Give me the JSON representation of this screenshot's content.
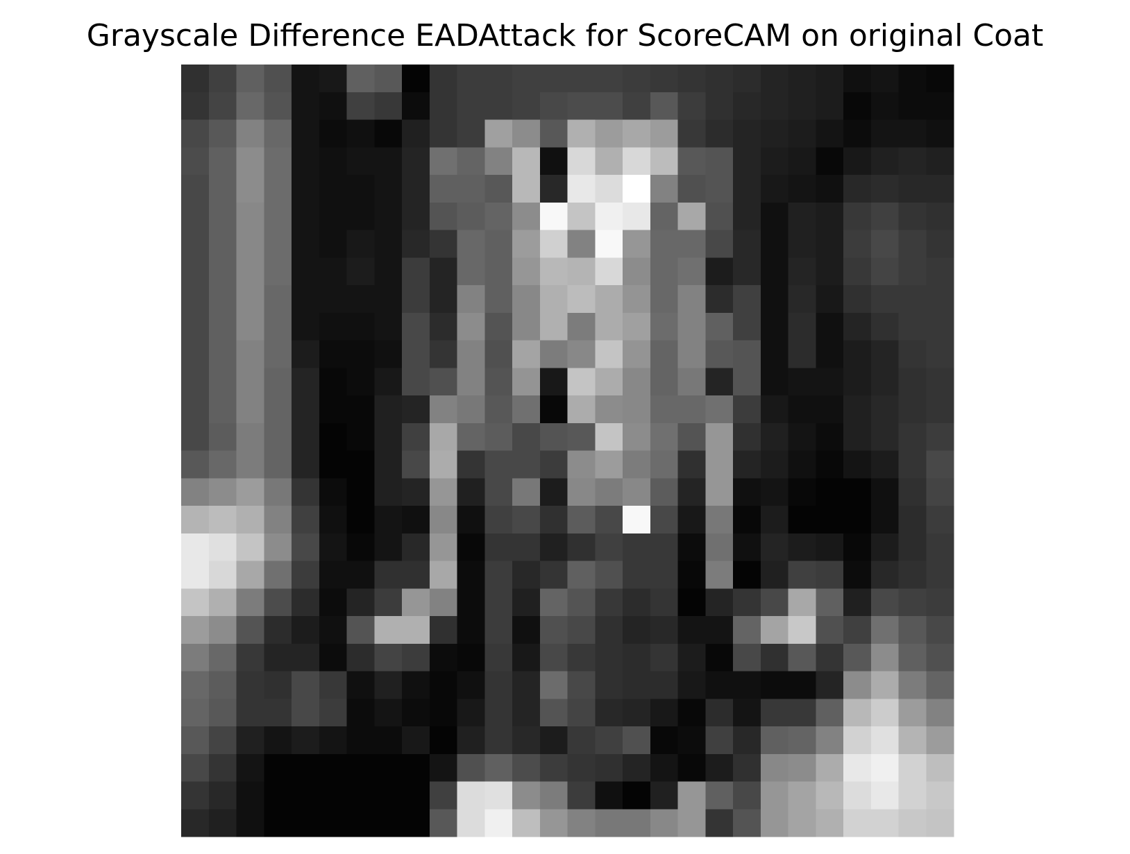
{
  "figure": {
    "title": "Grayscale Difference EADAttack for ScoreCAM on original Coat"
  },
  "chart_data": {
    "type": "heatmap",
    "title": "Grayscale Difference EADAttack for ScoreCAM on original Coat",
    "colormap": "gray",
    "rows": 28,
    "cols": 28,
    "axes_visible": false,
    "value_range": [
      0,
      255
    ],
    "values": [
      [
        48,
        64,
        96,
        80,
        20,
        24,
        96,
        88,
        4,
        52,
        60,
        60,
        64,
        64,
        64,
        64,
        60,
        56,
        52,
        48,
        44,
        36,
        32,
        28,
        16,
        20,
        12,
        8
      ],
      [
        52,
        68,
        104,
        84,
        20,
        16,
        64,
        56,
        12,
        52,
        60,
        60,
        64,
        72,
        76,
        76,
        64,
        88,
        60,
        48,
        40,
        36,
        32,
        28,
        8,
        16,
        12,
        12
      ],
      [
        72,
        88,
        130,
        104,
        20,
        12,
        16,
        8,
        32,
        52,
        60,
        160,
        140,
        88,
        176,
        156,
        168,
        156,
        56,
        44,
        36,
        32,
        28,
        20,
        12,
        20,
        20,
        16
      ],
      [
        76,
        96,
        140,
        108,
        20,
        16,
        20,
        20,
        36,
        112,
        100,
        130,
        184,
        16,
        216,
        176,
        216,
        188,
        88,
        84,
        36,
        28,
        24,
        8,
        24,
        32,
        36,
        32
      ],
      [
        72,
        96,
        140,
        108,
        20,
        16,
        16,
        20,
        36,
        96,
        96,
        88,
        184,
        40,
        232,
        220,
        255,
        130,
        80,
        84,
        36,
        24,
        20,
        16,
        40,
        44,
        40,
        40
      ],
      [
        72,
        96,
        136,
        108,
        20,
        16,
        16,
        20,
        36,
        84,
        92,
        100,
        140,
        248,
        196,
        240,
        232,
        100,
        168,
        80,
        36,
        16,
        32,
        28,
        56,
        64,
        52,
        48
      ],
      [
        72,
        96,
        136,
        108,
        20,
        16,
        24,
        20,
        40,
        52,
        104,
        96,
        156,
        208,
        130,
        248,
        150,
        104,
        104,
        72,
        40,
        16,
        32,
        28,
        60,
        72,
        60,
        52
      ],
      [
        72,
        96,
        136,
        108,
        20,
        20,
        28,
        20,
        60,
        36,
        104,
        96,
        150,
        184,
        180,
        216,
        140,
        104,
        112,
        28,
        40,
        16,
        36,
        28,
        56,
        68,
        60,
        56
      ],
      [
        72,
        96,
        136,
        104,
        20,
        20,
        20,
        20,
        60,
        36,
        130,
        96,
        136,
        176,
        188,
        172,
        148,
        104,
        130,
        44,
        64,
        16,
        40,
        24,
        48,
        56,
        56,
        56
      ],
      [
        72,
        96,
        136,
        104,
        20,
        16,
        16,
        20,
        72,
        44,
        140,
        84,
        136,
        176,
        124,
        172,
        160,
        108,
        130,
        96,
        64,
        16,
        44,
        16,
        36,
        48,
        56,
        56
      ],
      [
        72,
        96,
        130,
        104,
        28,
        12,
        12,
        16,
        72,
        52,
        130,
        80,
        164,
        124,
        136,
        196,
        148,
        100,
        130,
        88,
        84,
        16,
        44,
        16,
        28,
        36,
        52,
        56
      ],
      [
        72,
        96,
        130,
        100,
        36,
        8,
        12,
        24,
        72,
        80,
        130,
        84,
        148,
        24,
        196,
        172,
        136,
        100,
        120,
        36,
        84,
        16,
        20,
        20,
        28,
        36,
        48,
        52
      ],
      [
        72,
        96,
        130,
        100,
        36,
        8,
        8,
        32,
        36,
        130,
        120,
        88,
        112,
        8,
        172,
        140,
        136,
        104,
        104,
        112,
        60,
        24,
        16,
        16,
        32,
        40,
        48,
        52
      ],
      [
        72,
        92,
        124,
        100,
        36,
        4,
        8,
        32,
        64,
        168,
        100,
        92,
        72,
        84,
        88,
        196,
        140,
        112,
        84,
        150,
        48,
        32,
        20,
        12,
        32,
        40,
        52,
        60
      ],
      [
        88,
        104,
        124,
        100,
        36,
        4,
        4,
        32,
        72,
        172,
        52,
        72,
        72,
        60,
        140,
        156,
        124,
        108,
        48,
        150,
        36,
        28,
        16,
        8,
        20,
        28,
        52,
        72
      ],
      [
        130,
        140,
        156,
        120,
        52,
        12,
        4,
        32,
        36,
        150,
        32,
        72,
        120,
        28,
        136,
        124,
        136,
        92,
        36,
        150,
        16,
        20,
        8,
        4,
        4,
        16,
        48,
        68
      ],
      [
        180,
        188,
        176,
        130,
        64,
        16,
        4,
        20,
        16,
        136,
        16,
        64,
        72,
        48,
        92,
        72,
        248,
        72,
        24,
        120,
        8,
        28,
        4,
        4,
        4,
        16,
        44,
        60
      ],
      [
        232,
        224,
        196,
        140,
        72,
        20,
        8,
        20,
        40,
        150,
        8,
        52,
        52,
        32,
        48,
        64,
        56,
        56,
        12,
        112,
        16,
        36,
        28,
        24,
        8,
        28,
        44,
        56
      ],
      [
        232,
        216,
        168,
        112,
        60,
        16,
        16,
        48,
        48,
        168,
        12,
        60,
        40,
        52,
        96,
        80,
        56,
        56,
        8,
        124,
        4,
        32,
        64,
        60,
        12,
        40,
        48,
        56
      ],
      [
        196,
        176,
        124,
        76,
        44,
        12,
        36,
        60,
        150,
        130,
        12,
        60,
        32,
        100,
        84,
        56,
        44,
        52,
        4,
        36,
        52,
        72,
        168,
        96,
        32,
        72,
        64,
        60
      ],
      [
        156,
        140,
        84,
        44,
        28,
        16,
        84,
        176,
        176,
        48,
        12,
        60,
        16,
        80,
        72,
        48,
        36,
        40,
        20,
        20,
        100,
        164,
        200,
        80,
        64,
        112,
        88,
        72
      ],
      [
        124,
        104,
        56,
        36,
        36,
        12,
        44,
        68,
        60,
        12,
        8,
        56,
        24,
        72,
        56,
        48,
        44,
        52,
        28,
        8,
        72,
        48,
        88,
        52,
        88,
        140,
        96,
        80
      ],
      [
        104,
        92,
        52,
        48,
        72,
        56,
        16,
        32,
        16,
        8,
        16,
        52,
        36,
        108,
        72,
        48,
        44,
        44,
        24,
        16,
        16,
        12,
        12,
        36,
        140,
        172,
        124,
        100
      ],
      [
        100,
        88,
        52,
        52,
        72,
        60,
        12,
        20,
        12,
        8,
        24,
        52,
        36,
        84,
        68,
        40,
        36,
        24,
        8,
        44,
        20,
        56,
        56,
        96,
        184,
        204,
        156,
        130
      ],
      [
        88,
        68,
        32,
        20,
        28,
        20,
        12,
        12,
        24,
        4,
        32,
        52,
        40,
        28,
        56,
        64,
        80,
        8,
        12,
        64,
        40,
        96,
        100,
        130,
        210,
        224,
        180,
        156
      ],
      [
        72,
        52,
        20,
        4,
        4,
        4,
        4,
        4,
        4,
        20,
        80,
        96,
        76,
        60,
        52,
        48,
        36,
        20,
        8,
        28,
        48,
        136,
        140,
        172,
        232,
        240,
        210,
        190
      ],
      [
        52,
        40,
        16,
        4,
        4,
        4,
        4,
        4,
        4,
        64,
        220,
        224,
        140,
        124,
        60,
        16,
        4,
        32,
        150,
        96,
        72,
        150,
        164,
        184,
        220,
        232,
        210,
        200
      ],
      [
        40,
        32,
        16,
        4,
        4,
        4,
        4,
        4,
        4,
        88,
        220,
        240,
        190,
        150,
        130,
        120,
        120,
        136,
        150,
        52,
        84,
        150,
        164,
        176,
        210,
        210,
        200,
        196
      ]
    ]
  }
}
